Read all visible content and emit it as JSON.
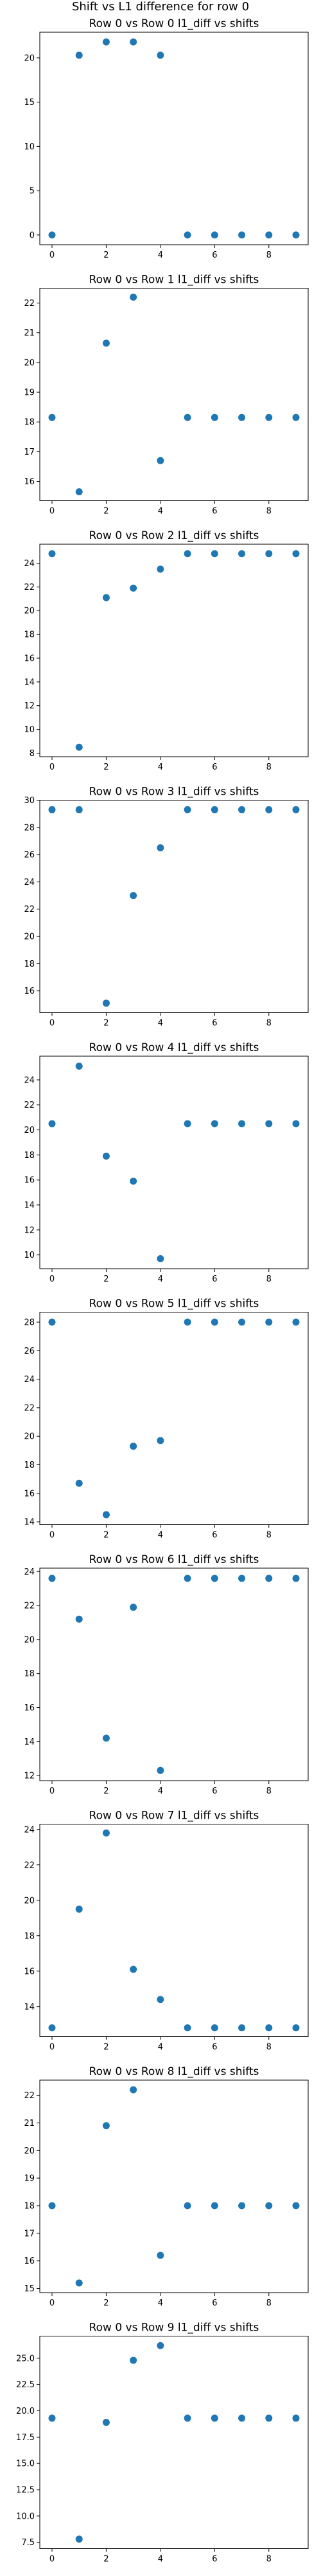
{
  "figure": {
    "suptitle": "Shift vs L1 difference for row 0",
    "marker_color": "#1f77b4"
  },
  "chart_data": [
    {
      "type": "scatter",
      "title": "Row 0 vs Row 0 l1_diff vs shifts",
      "x": [
        0,
        1,
        2,
        3,
        4,
        5,
        6,
        7,
        8,
        9
      ],
      "y": [
        0,
        20.3,
        21.8,
        21.8,
        20.3,
        0,
        0,
        0,
        0,
        0
      ],
      "xlim": [
        -0.45,
        9.45
      ],
      "ylim": [
        -1.1,
        22.9
      ],
      "xticks": [
        0,
        2,
        4,
        6,
        8
      ],
      "xticklabels": [
        "0",
        "2",
        "4",
        "6",
        "8"
      ],
      "yticks": [
        0,
        5,
        10,
        15,
        20
      ],
      "yticklabels": [
        "0",
        "5",
        "10",
        "15",
        "20"
      ],
      "grid": false,
      "legend": "none"
    },
    {
      "type": "scatter",
      "title": "Row 0 vs Row 1 l1_diff vs shifts",
      "x": [
        0,
        1,
        2,
        3,
        4,
        5,
        6,
        7,
        8,
        9
      ],
      "y": [
        18.15,
        15.65,
        20.65,
        22.2,
        16.7,
        18.15,
        18.15,
        18.15,
        18.15,
        18.15
      ],
      "xlim": [
        -0.45,
        9.45
      ],
      "ylim": [
        15.35,
        22.5
      ],
      "xticks": [
        0,
        2,
        4,
        6,
        8
      ],
      "xticklabels": [
        "0",
        "2",
        "4",
        "6",
        "8"
      ],
      "yticks": [
        16,
        17,
        18,
        19,
        20,
        21,
        22
      ],
      "yticklabels": [
        "16",
        "17",
        "18",
        "19",
        "20",
        "21",
        "22"
      ],
      "grid": false,
      "legend": "none"
    },
    {
      "type": "scatter",
      "title": "Row 0 vs Row 2 l1_diff vs shifts",
      "x": [
        0,
        1,
        2,
        3,
        4,
        5,
        6,
        7,
        8,
        9
      ],
      "y": [
        24.8,
        8.5,
        21.1,
        21.9,
        23.5,
        24.8,
        24.8,
        24.8,
        24.8,
        24.8
      ],
      "xlim": [
        -0.45,
        9.45
      ],
      "ylim": [
        7.7,
        25.6
      ],
      "xticks": [
        0,
        2,
        4,
        6,
        8
      ],
      "xticklabels": [
        "0",
        "2",
        "4",
        "6",
        "8"
      ],
      "yticks": [
        8,
        10,
        12,
        14,
        16,
        18,
        20,
        22,
        24
      ],
      "yticklabels": [
        "8",
        "10",
        "12",
        "14",
        "16",
        "18",
        "20",
        "22",
        "24"
      ],
      "grid": false,
      "legend": "none"
    },
    {
      "type": "scatter",
      "title": "Row 0 vs Row 3 l1_diff vs shifts",
      "x": [
        0,
        1,
        2,
        3,
        4,
        5,
        6,
        7,
        8,
        9
      ],
      "y": [
        29.3,
        29.3,
        15.1,
        23.0,
        26.5,
        29.3,
        29.3,
        29.3,
        29.3,
        29.3
      ],
      "xlim": [
        -0.45,
        9.45
      ],
      "ylim": [
        14.4,
        30.0
      ],
      "xticks": [
        0,
        2,
        4,
        6,
        8
      ],
      "xticklabels": [
        "0",
        "2",
        "4",
        "6",
        "8"
      ],
      "yticks": [
        16,
        18,
        20,
        22,
        24,
        26,
        28,
        30
      ],
      "yticklabels": [
        "16",
        "18",
        "20",
        "22",
        "24",
        "26",
        "28",
        "30"
      ],
      "grid": false,
      "legend": "none"
    },
    {
      "type": "scatter",
      "title": "Row 0 vs Row 4 l1_diff vs shifts",
      "x": [
        0,
        1,
        2,
        3,
        4,
        5,
        6,
        7,
        8,
        9
      ],
      "y": [
        20.5,
        25.1,
        17.9,
        15.9,
        9.7,
        20.5,
        20.5,
        20.5,
        20.5,
        20.5
      ],
      "xlim": [
        -0.45,
        9.45
      ],
      "ylim": [
        8.9,
        25.9
      ],
      "xticks": [
        0,
        2,
        4,
        6,
        8
      ],
      "xticklabels": [
        "0",
        "2",
        "4",
        "6",
        "8"
      ],
      "yticks": [
        10,
        12,
        14,
        16,
        18,
        20,
        22,
        24
      ],
      "yticklabels": [
        "10",
        "12",
        "14",
        "16",
        "18",
        "20",
        "22",
        "24"
      ],
      "grid": false,
      "legend": "none"
    },
    {
      "type": "scatter",
      "title": "Row 0 vs Row 5 l1_diff vs shifts",
      "x": [
        0,
        1,
        2,
        3,
        4,
        5,
        6,
        7,
        8,
        9
      ],
      "y": [
        28.0,
        16.7,
        14.5,
        19.3,
        19.7,
        28.0,
        28.0,
        28.0,
        28.0,
        28.0
      ],
      "xlim": [
        -0.45,
        9.45
      ],
      "ylim": [
        13.8,
        28.7
      ],
      "xticks": [
        0,
        2,
        4,
        6,
        8
      ],
      "xticklabels": [
        "0",
        "2",
        "4",
        "6",
        "8"
      ],
      "yticks": [
        14,
        16,
        18,
        20,
        22,
        24,
        26,
        28
      ],
      "yticklabels": [
        "14",
        "16",
        "18",
        "20",
        "22",
        "24",
        "26",
        "28"
      ],
      "grid": false,
      "legend": "none"
    },
    {
      "type": "scatter",
      "title": "Row 0 vs Row 6 l1_diff vs shifts",
      "x": [
        0,
        1,
        2,
        3,
        4,
        5,
        6,
        7,
        8,
        9
      ],
      "y": [
        23.6,
        21.2,
        14.2,
        21.9,
        12.3,
        23.6,
        23.6,
        23.6,
        23.6,
        23.6
      ],
      "xlim": [
        -0.45,
        9.45
      ],
      "ylim": [
        11.7,
        24.2
      ],
      "xticks": [
        0,
        2,
        4,
        6,
        8
      ],
      "xticklabels": [
        "0",
        "2",
        "4",
        "6",
        "8"
      ],
      "yticks": [
        12,
        14,
        16,
        18,
        20,
        22,
        24
      ],
      "yticklabels": [
        "12",
        "14",
        "16",
        "18",
        "20",
        "22",
        "24"
      ],
      "grid": false,
      "legend": "none"
    },
    {
      "type": "scatter",
      "title": "Row 0 vs Row 7 l1_diff vs shifts",
      "x": [
        0,
        1,
        2,
        3,
        4,
        5,
        6,
        7,
        8,
        9
      ],
      "y": [
        12.8,
        19.5,
        23.8,
        16.1,
        14.4,
        12.8,
        12.8,
        12.8,
        12.8,
        12.8
      ],
      "xlim": [
        -0.45,
        9.45
      ],
      "ylim": [
        12.3,
        24.3
      ],
      "xticks": [
        0,
        2,
        4,
        6,
        8
      ],
      "xticklabels": [
        "0",
        "2",
        "4",
        "6",
        "8"
      ],
      "yticks": [
        14,
        16,
        18,
        20,
        22,
        24
      ],
      "yticklabels": [
        "14",
        "16",
        "18",
        "20",
        "22",
        "24"
      ],
      "grid": false,
      "legend": "none"
    },
    {
      "type": "scatter",
      "title": "Row 0 vs Row 8 l1_diff vs shifts",
      "x": [
        0,
        1,
        2,
        3,
        4,
        5,
        6,
        7,
        8,
        9
      ],
      "y": [
        18.0,
        15.2,
        20.9,
        22.2,
        16.2,
        18.0,
        18.0,
        18.0,
        18.0,
        18.0
      ],
      "xlim": [
        -0.45,
        9.45
      ],
      "ylim": [
        14.85,
        22.55
      ],
      "xticks": [
        0,
        2,
        4,
        6,
        8
      ],
      "xticklabels": [
        "0",
        "2",
        "4",
        "6",
        "8"
      ],
      "yticks": [
        15,
        16,
        17,
        18,
        19,
        20,
        21,
        22
      ],
      "yticklabels": [
        "15",
        "16",
        "17",
        "18",
        "19",
        "20",
        "21",
        "22"
      ],
      "grid": false,
      "legend": "none"
    },
    {
      "type": "scatter",
      "title": "Row 0 vs Row 9 l1_diff vs shifts",
      "x": [
        0,
        1,
        2,
        3,
        4,
        5,
        6,
        7,
        8,
        9
      ],
      "y": [
        19.3,
        7.8,
        18.9,
        24.8,
        26.2,
        19.3,
        19.3,
        19.3,
        19.3,
        19.3
      ],
      "xlim": [
        -0.45,
        9.45
      ],
      "ylim": [
        6.9,
        27.1
      ],
      "xticks": [
        0,
        2,
        4,
        6,
        8
      ],
      "xticklabels": [
        "0",
        "2",
        "4",
        "6",
        "8"
      ],
      "yticks": [
        7.5,
        10.0,
        12.5,
        15.0,
        17.5,
        20.0,
        22.5,
        25.0
      ],
      "yticklabels": [
        "7.5",
        "10.0",
        "12.5",
        "15.0",
        "17.5",
        "20.0",
        "22.5",
        "25.0"
      ],
      "grid": false,
      "legend": "none"
    }
  ]
}
